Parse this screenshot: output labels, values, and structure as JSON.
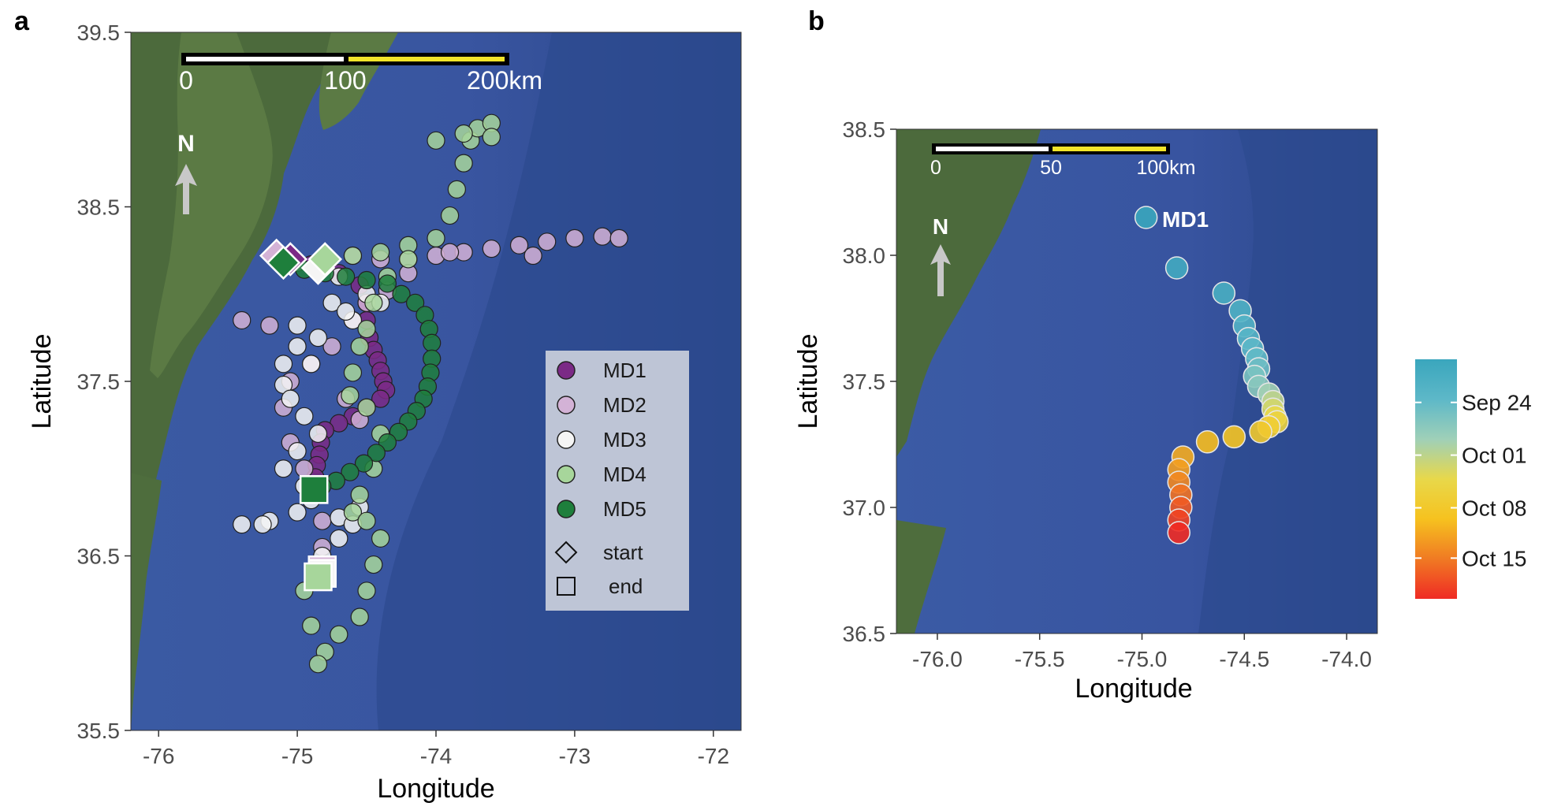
{
  "panels": [
    {
      "letter": "a",
      "xlabel": "Longitude",
      "ylabel": "Latitude",
      "xlim": [
        -76.2,
        -71.8
      ],
      "ylim": [
        35.5,
        39.5
      ],
      "xticks": [
        "-76",
        "-75",
        "-74",
        "-73",
        "-72"
      ],
      "xtick_values": [
        -76,
        -75,
        -74,
        -73,
        -72
      ],
      "yticks": [
        "35.5",
        "36.5",
        "37.5",
        "38.5",
        "39.5"
      ],
      "ytick_values": [
        35.5,
        36.5,
        37.5,
        38.5,
        39.5
      ],
      "scale_bar": {
        "labels": [
          "0",
          "100",
          "200km"
        ],
        "km": [
          0,
          100,
          200
        ]
      },
      "north_label": "N",
      "legend": {
        "entries": [
          {
            "name": "MD1",
            "color": "#7b2a86"
          },
          {
            "name": "MD2",
            "color": "#d3b2d6"
          },
          {
            "name": "MD3",
            "color": "#f5f5f5"
          },
          {
            "name": "MD4",
            "color": "#a7d69b"
          },
          {
            "name": "MD5",
            "color": "#1e7f3c"
          }
        ],
        "start_label": "start",
        "end_label": "end"
      }
    },
    {
      "letter": "b",
      "xlabel": "Longitude",
      "ylabel": "Latitude",
      "xlim": [
        -76.2,
        -73.85
      ],
      "ylim": [
        36.5,
        38.5
      ],
      "xticks": [
        "-76.0",
        "-75.5",
        "-75.0",
        "-74.5",
        "-74.0"
      ],
      "xtick_values": [
        -76.0,
        -75.5,
        -75.0,
        -74.5,
        -74.0
      ],
      "yticks": [
        "36.5",
        "37.0",
        "37.5",
        "38.0",
        "38.5"
      ],
      "ytick_values": [
        36.5,
        37.0,
        37.5,
        38.0,
        38.5
      ],
      "scale_bar": {
        "labels": [
          "0",
          "50",
          "100km"
        ],
        "km": [
          0,
          50,
          100
        ]
      },
      "north_label": "N",
      "track_label": "MD1",
      "colorbar": {
        "labels": [
          "Sep 24",
          "Oct 01",
          "Oct 08",
          "Oct 15"
        ],
        "label_fraction": [
          0.82,
          0.6,
          0.38,
          0.17
        ],
        "colors": [
          "#ef2b24",
          "#f07a23",
          "#f6c21f",
          "#e8d84a",
          "#9fd0b8",
          "#5db8c8",
          "#3aa6bd"
        ]
      }
    }
  ],
  "chart_data": [
    {
      "type": "scatter",
      "panel": "a",
      "xlabel": "Longitude",
      "ylabel": "Latitude",
      "xlim": [
        -76.2,
        -71.8
      ],
      "ylim": [
        35.5,
        39.5
      ],
      "series": [
        {
          "name": "MD1",
          "color": "#7b2a86",
          "start": [
            -75.05,
            38.2
          ],
          "end": [
            -74.88,
            36.88
          ],
          "points": [
            [
              -75.05,
              38.2
            ],
            [
              -74.9,
              38.17
            ],
            [
              -74.7,
              38.12
            ],
            [
              -74.55,
              38.05
            ],
            [
              -74.5,
              37.95
            ],
            [
              -74.5,
              37.85
            ],
            [
              -74.48,
              37.75
            ],
            [
              -74.45,
              37.68
            ],
            [
              -74.42,
              37.62
            ],
            [
              -74.4,
              37.56
            ],
            [
              -74.38,
              37.5
            ],
            [
              -74.36,
              37.45
            ],
            [
              -74.4,
              37.4
            ],
            [
              -74.5,
              37.35
            ],
            [
              -74.6,
              37.3
            ],
            [
              -74.7,
              37.26
            ],
            [
              -74.8,
              37.22
            ],
            [
              -74.83,
              37.15
            ],
            [
              -74.84,
              37.08
            ],
            [
              -74.86,
              37.02
            ],
            [
              -74.87,
              36.95
            ],
            [
              -74.88,
              36.88
            ]
          ]
        },
        {
          "name": "MD2",
          "color": "#d3b2d6",
          "start": [
            -75.15,
            38.22
          ],
          "end": [
            -74.82,
            36.42
          ],
          "points": [
            [
              -75.15,
              38.22
            ],
            [
              -75.0,
              38.18
            ],
            [
              -74.8,
              38.2
            ],
            [
              -74.6,
              38.22
            ],
            [
              -74.4,
              38.2
            ],
            [
              -74.2,
              38.2
            ],
            [
              -74.0,
              38.22
            ],
            [
              -73.8,
              38.24
            ],
            [
              -73.6,
              38.26
            ],
            [
              -73.4,
              38.28
            ],
            [
              -73.2,
              38.3
            ],
            [
              -73.0,
              38.32
            ],
            [
              -72.8,
              38.33
            ],
            [
              -72.68,
              38.32
            ],
            [
              -73.3,
              38.22
            ],
            [
              -73.9,
              38.24
            ],
            [
              -74.2,
              38.12
            ],
            [
              -74.35,
              38.02
            ],
            [
              -74.5,
              37.95
            ],
            [
              -74.6,
              37.85
            ],
            [
              -74.75,
              37.7
            ],
            [
              -74.9,
              37.6
            ],
            [
              -75.05,
              37.5
            ],
            [
              -75.1,
              37.35
            ],
            [
              -75.05,
              37.15
            ],
            [
              -74.95,
              37.0
            ],
            [
              -74.85,
              36.85
            ],
            [
              -74.82,
              36.7
            ],
            [
              -74.82,
              36.55
            ],
            [
              -74.82,
              36.42
            ],
            [
              -75.4,
              37.85
            ],
            [
              -75.2,
              37.82
            ],
            [
              -74.65,
              37.4
            ],
            [
              -74.55,
              37.28
            ]
          ]
        },
        {
          "name": "MD3",
          "color": "#f5f5f5",
          "start": [
            -74.85,
            38.15
          ],
          "end": [
            -74.82,
            36.4
          ],
          "points": [
            [
              -74.85,
              38.15
            ],
            [
              -74.7,
              38.1
            ],
            [
              -74.5,
              38.0
            ],
            [
              -74.4,
              37.95
            ],
            [
              -74.6,
              37.85
            ],
            [
              -74.85,
              37.75
            ],
            [
              -75.0,
              37.7
            ],
            [
              -75.1,
              37.6
            ],
            [
              -75.1,
              37.48
            ],
            [
              -75.05,
              37.4
            ],
            [
              -74.95,
              37.3
            ],
            [
              -74.85,
              37.2
            ],
            [
              -75.0,
              37.1
            ],
            [
              -75.1,
              37.0
            ],
            [
              -74.95,
              36.9
            ],
            [
              -74.9,
              36.82
            ],
            [
              -75.0,
              36.75
            ],
            [
              -75.2,
              36.7
            ],
            [
              -75.4,
              36.68
            ],
            [
              -75.25,
              36.68
            ],
            [
              -74.7,
              36.72
            ],
            [
              -74.6,
              36.68
            ],
            [
              -74.55,
              36.78
            ],
            [
              -74.7,
              36.6
            ],
            [
              -74.82,
              36.5
            ],
            [
              -74.82,
              36.4
            ],
            [
              -74.75,
              37.95
            ],
            [
              -74.65,
              37.9
            ],
            [
              -75.0,
              37.82
            ],
            [
              -74.9,
              37.6
            ]
          ]
        },
        {
          "name": "MD4",
          "color": "#a7d69b",
          "start": [
            -74.8,
            38.2
          ],
          "end": [
            -74.85,
            36.38
          ],
          "points": [
            [
              -74.8,
              38.2
            ],
            [
              -74.6,
              38.22
            ],
            [
              -74.4,
              38.24
            ],
            [
              -74.2,
              38.28
            ],
            [
              -74.0,
              38.32
            ],
            [
              -73.9,
              38.45
            ],
            [
              -73.85,
              38.6
            ],
            [
              -73.8,
              38.75
            ],
            [
              -73.75,
              38.88
            ],
            [
              -73.7,
              38.95
            ],
            [
              -73.6,
              38.98
            ],
            [
              -73.6,
              38.9
            ],
            [
              -73.8,
              38.92
            ],
            [
              -74.0,
              38.88
            ],
            [
              -74.2,
              38.2
            ],
            [
              -74.35,
              38.1
            ],
            [
              -74.45,
              37.95
            ],
            [
              -74.5,
              37.8
            ],
            [
              -74.55,
              37.7
            ],
            [
              -74.6,
              37.55
            ],
            [
              -74.62,
              37.42
            ],
            [
              -74.5,
              37.35
            ],
            [
              -74.4,
              37.2
            ],
            [
              -74.45,
              37.0
            ],
            [
              -74.55,
              36.85
            ],
            [
              -74.6,
              36.75
            ],
            [
              -74.5,
              36.7
            ],
            [
              -74.4,
              36.6
            ],
            [
              -74.45,
              36.45
            ],
            [
              -74.5,
              36.3
            ],
            [
              -74.55,
              36.15
            ],
            [
              -74.7,
              36.05
            ],
            [
              -74.8,
              35.95
            ],
            [
              -74.85,
              35.88
            ],
            [
              -74.9,
              36.1
            ],
            [
              -74.95,
              36.3
            ],
            [
              -74.85,
              36.38
            ]
          ]
        },
        {
          "name": "MD5",
          "color": "#1e7f3c",
          "start": [
            -75.1,
            38.18
          ],
          "end": [
            -74.88,
            36.88
          ],
          "points": [
            [
              -75.1,
              38.18
            ],
            [
              -74.95,
              38.14
            ],
            [
              -74.8,
              38.12
            ],
            [
              -74.65,
              38.1
            ],
            [
              -74.5,
              38.08
            ],
            [
              -74.35,
              38.06
            ],
            [
              -74.25,
              38.0
            ],
            [
              -74.15,
              37.95
            ],
            [
              -74.08,
              37.88
            ],
            [
              -74.05,
              37.8
            ],
            [
              -74.03,
              37.72
            ],
            [
              -74.03,
              37.63
            ],
            [
              -74.04,
              37.55
            ],
            [
              -74.06,
              37.47
            ],
            [
              -74.09,
              37.4
            ],
            [
              -74.14,
              37.33
            ],
            [
              -74.2,
              37.27
            ],
            [
              -74.27,
              37.21
            ],
            [
              -74.35,
              37.15
            ],
            [
              -74.43,
              37.09
            ],
            [
              -74.52,
              37.03
            ],
            [
              -74.62,
              36.98
            ],
            [
              -74.72,
              36.93
            ],
            [
              -74.82,
              36.9
            ],
            [
              -74.88,
              36.88
            ]
          ]
        }
      ]
    },
    {
      "type": "scatter",
      "panel": "b",
      "xlabel": "Longitude",
      "ylabel": "Latitude",
      "xlim": [
        -76.2,
        -73.85
      ],
      "ylim": [
        36.5,
        38.5
      ],
      "series": [
        {
          "name": "MD1",
          "color_by": "date",
          "points": [
            [
              -74.98,
              38.15,
              1.0
            ],
            [
              -74.83,
              37.95,
              0.96
            ],
            [
              -74.6,
              37.85,
              0.93
            ],
            [
              -74.52,
              37.78,
              0.9
            ],
            [
              -74.5,
              37.72,
              0.88
            ],
            [
              -74.48,
              37.67,
              0.86
            ],
            [
              -74.46,
              37.63,
              0.84
            ],
            [
              -74.44,
              37.59,
              0.82
            ],
            [
              -74.43,
              37.55,
              0.79
            ],
            [
              -74.45,
              37.52,
              0.76
            ],
            [
              -74.43,
              37.48,
              0.72
            ],
            [
              -74.38,
              37.45,
              0.66
            ],
            [
              -74.36,
              37.42,
              0.6
            ],
            [
              -74.36,
              37.39,
              0.55
            ],
            [
              -74.35,
              37.36,
              0.5
            ],
            [
              -74.34,
              37.34,
              0.46
            ],
            [
              -74.38,
              37.32,
              0.42
            ],
            [
              -74.42,
              37.3,
              0.39
            ],
            [
              -74.55,
              37.28,
              0.35
            ],
            [
              -74.68,
              37.26,
              0.32
            ],
            [
              -74.8,
              37.2,
              0.28
            ],
            [
              -74.82,
              37.15,
              0.25
            ],
            [
              -74.82,
              37.1,
              0.2
            ],
            [
              -74.81,
              37.05,
              0.15
            ],
            [
              -74.81,
              37.0,
              0.1
            ],
            [
              -74.82,
              36.95,
              0.05
            ],
            [
              -74.82,
              36.9,
              0.0
            ]
          ]
        }
      ]
    }
  ]
}
